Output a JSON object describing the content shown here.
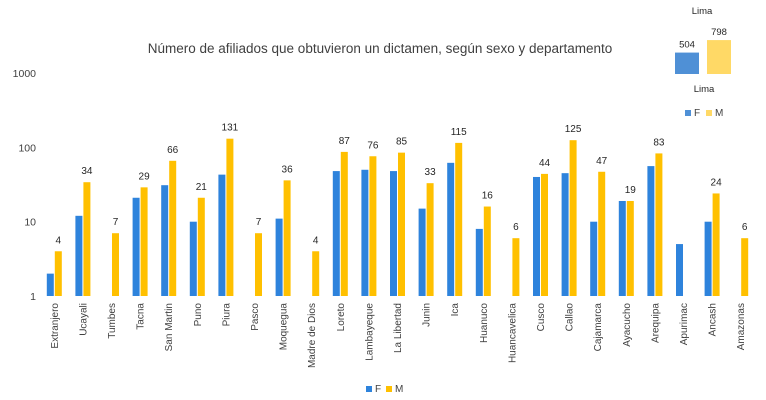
{
  "chart_data": [
    {
      "type": "bar",
      "title": "Número de afiliados que obtuvieron un dictamen, según sexo y departamento",
      "yscale": "log",
      "ylim": [
        1,
        1000
      ],
      "yticks": [
        "1",
        "10",
        "100",
        "1000"
      ],
      "categories": [
        "Extranjero",
        "Ucayali",
        "Tumbes",
        "Tacna",
        "San Martin",
        "Puno",
        "Piura",
        "Pasco",
        "Moquegua",
        "Madre de Dios",
        "Loreto",
        "Lambayeque",
        "La Libertad",
        "Junin",
        "Ica",
        "Huanuco",
        "Huancavelica",
        "Cusco",
        "Callao",
        "Cajamarca",
        "Ayacucho",
        "Arequipa",
        "Apurimac",
        "Ancash",
        "Amazonas"
      ],
      "series": [
        {
          "name": "F",
          "color": "#2E83DC",
          "values": [
            2,
            12,
            null,
            21,
            31,
            10,
            43,
            null,
            11,
            null,
            48,
            50,
            48,
            15,
            62,
            8,
            null,
            40,
            45,
            10,
            19,
            56,
            5,
            10,
            null
          ]
        },
        {
          "name": "M",
          "color": "#FFC000",
          "values": [
            4,
            34,
            7,
            29,
            66,
            21,
            131,
            7,
            36,
            4,
            87,
            76,
            85,
            33,
            115,
            16,
            6,
            44,
            125,
            47,
            19,
            83,
            null,
            24,
            6
          ]
        }
      ],
      "data_labels": [
        "4",
        "34",
        "7",
        "29",
        "66",
        "21",
        "131",
        "7",
        "36",
        "4",
        "87",
        "76",
        "85",
        "33",
        "115",
        "16",
        "6",
        "44",
        "125",
        "47",
        "19",
        "83",
        "",
        "24",
        "6"
      ],
      "legend": {
        "position": "bottom",
        "entries": [
          "F",
          "M"
        ]
      }
    },
    {
      "type": "bar",
      "title": "Lima",
      "xlabel": "Lima",
      "categories": [
        "Lima"
      ],
      "series": [
        {
          "name": "F",
          "color": "#4F90D6",
          "values": [
            504
          ]
        },
        {
          "name": "M",
          "color": "#FFD966",
          "values": [
            798
          ]
        }
      ],
      "data_labels": [
        "504",
        "798"
      ],
      "legend": {
        "position": "bottom",
        "entries": [
          "F",
          "M"
        ]
      }
    }
  ]
}
